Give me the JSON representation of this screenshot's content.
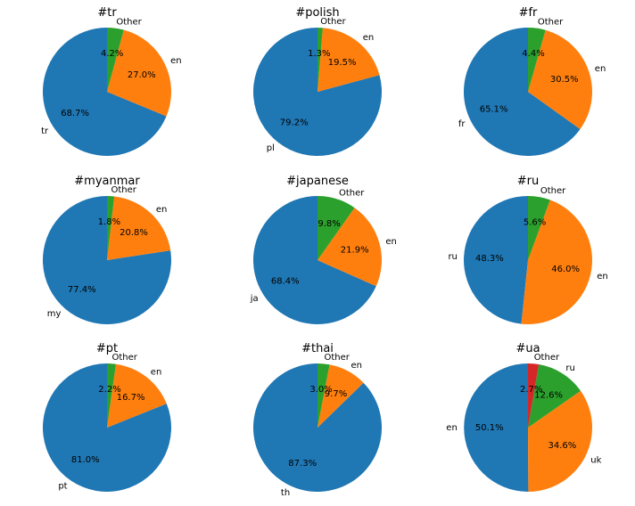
{
  "colors": {
    "blue": "#1f77b4",
    "orange": "#ff7f0e",
    "green": "#2ca02c",
    "red": "#d62728"
  },
  "chart_data": [
    {
      "type": "pie",
      "title": "#tr",
      "slices": [
        {
          "label": "tr",
          "value": 68.7,
          "pct_text": "68.7%",
          "color": "#1f77b4"
        },
        {
          "label": "en",
          "value": 27.0,
          "pct_text": "27.0%",
          "color": "#ff7f0e"
        },
        {
          "label": "Other",
          "value": 4.2,
          "pct_text": "4.2%",
          "color": "#2ca02c"
        }
      ]
    },
    {
      "type": "pie",
      "title": "#polish",
      "slices": [
        {
          "label": "pl",
          "value": 79.2,
          "pct_text": "79.2%",
          "color": "#1f77b4"
        },
        {
          "label": "en",
          "value": 19.5,
          "pct_text": "19.5%",
          "color": "#ff7f0e"
        },
        {
          "label": "Other",
          "value": 1.3,
          "pct_text": "1.3%",
          "color": "#2ca02c"
        }
      ]
    },
    {
      "type": "pie",
      "title": "#fr",
      "slices": [
        {
          "label": "fr",
          "value": 65.1,
          "pct_text": "65.1%",
          "color": "#1f77b4"
        },
        {
          "label": "en",
          "value": 30.5,
          "pct_text": "30.5%",
          "color": "#ff7f0e"
        },
        {
          "label": "Other",
          "value": 4.4,
          "pct_text": "4.4%",
          "color": "#2ca02c"
        }
      ]
    },
    {
      "type": "pie",
      "title": "#myanmar",
      "slices": [
        {
          "label": "my",
          "value": 77.4,
          "pct_text": "77.4%",
          "color": "#1f77b4"
        },
        {
          "label": "en",
          "value": 20.8,
          "pct_text": "20.8%",
          "color": "#ff7f0e"
        },
        {
          "label": "Other",
          "value": 1.8,
          "pct_text": "1.8%",
          "color": "#2ca02c"
        }
      ]
    },
    {
      "type": "pie",
      "title": "#japanese",
      "slices": [
        {
          "label": "ja",
          "value": 68.4,
          "pct_text": "68.4%",
          "color": "#1f77b4"
        },
        {
          "label": "en",
          "value": 21.9,
          "pct_text": "21.9%",
          "color": "#ff7f0e"
        },
        {
          "label": "Other",
          "value": 9.8,
          "pct_text": "9.8%",
          "color": "#2ca02c"
        }
      ]
    },
    {
      "type": "pie",
      "title": "#ru",
      "slices": [
        {
          "label": "ru",
          "value": 48.3,
          "pct_text": "48.3%",
          "color": "#1f77b4"
        },
        {
          "label": "en",
          "value": 46.0,
          "pct_text": "46.0%",
          "color": "#ff7f0e"
        },
        {
          "label": "Other",
          "value": 5.6,
          "pct_text": "5.6%",
          "color": "#2ca02c"
        }
      ]
    },
    {
      "type": "pie",
      "title": "#pt",
      "slices": [
        {
          "label": "pt",
          "value": 81.0,
          "pct_text": "81.0%",
          "color": "#1f77b4"
        },
        {
          "label": "en",
          "value": 16.7,
          "pct_text": "16.7%",
          "color": "#ff7f0e"
        },
        {
          "label": "Other",
          "value": 2.2,
          "pct_text": "2.2%",
          "color": "#2ca02c"
        }
      ]
    },
    {
      "type": "pie",
      "title": "#thai",
      "slices": [
        {
          "label": "th",
          "value": 87.3,
          "pct_text": "87.3%",
          "color": "#1f77b4"
        },
        {
          "label": "en",
          "value": 9.7,
          "pct_text": "9.7%",
          "color": "#ff7f0e"
        },
        {
          "label": "Other",
          "value": 3.0,
          "pct_text": "3.0%",
          "color": "#2ca02c"
        }
      ]
    },
    {
      "type": "pie",
      "title": "#ua",
      "slices": [
        {
          "label": "en",
          "value": 50.1,
          "pct_text": "50.1%",
          "color": "#1f77b4"
        },
        {
          "label": "uk",
          "value": 34.6,
          "pct_text": "34.6%",
          "color": "#ff7f0e"
        },
        {
          "label": "ru",
          "value": 12.6,
          "pct_text": "12.6%",
          "color": "#2ca02c"
        },
        {
          "label": "Other",
          "value": 2.7,
          "pct_text": "2.7%",
          "color": "#d62728"
        }
      ]
    }
  ]
}
